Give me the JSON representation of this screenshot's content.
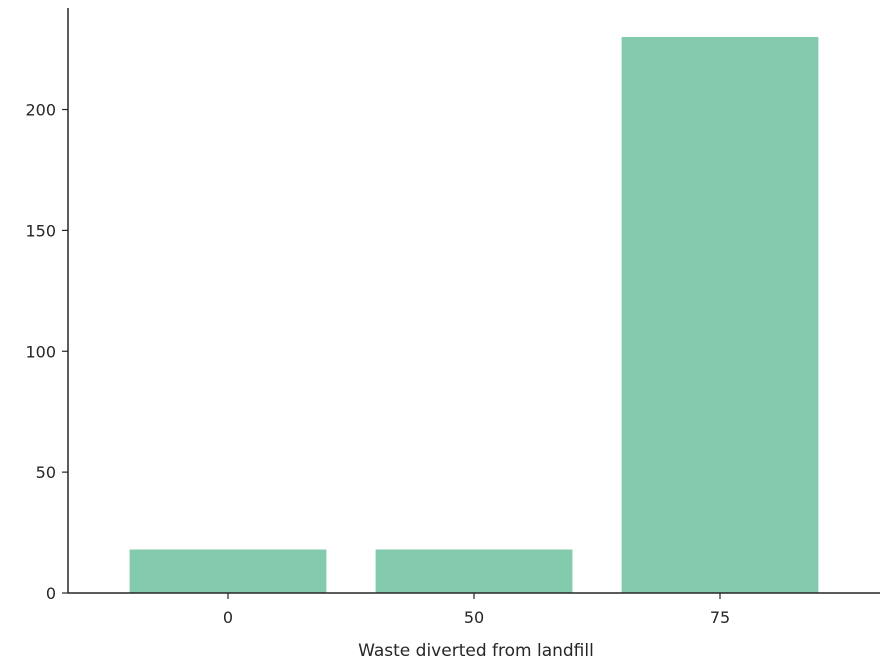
{
  "chart_data": {
    "type": "bar",
    "categories": [
      "0",
      "50",
      "75"
    ],
    "values": [
      18,
      18,
      230
    ],
    "xlabel": "Waste diverted from landfill",
    "ylabel": "",
    "ylim": [
      0,
      230
    ],
    "yticks": [
      0,
      50,
      100,
      150,
      200
    ],
    "bar_color": "#84cbae",
    "grid": false,
    "legend": "none"
  }
}
